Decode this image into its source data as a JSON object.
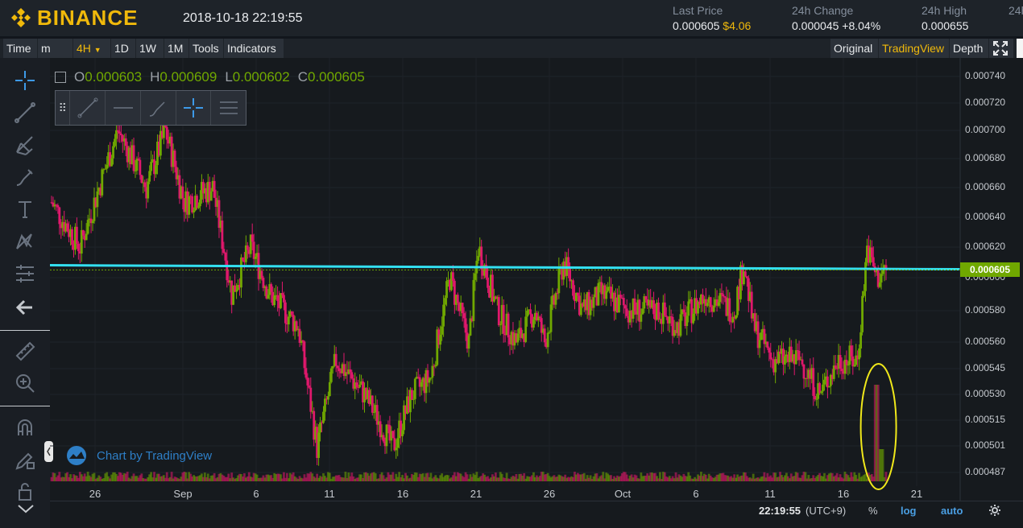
{
  "header": {
    "brand": "BINANCE",
    "datetime": "2018-10-18 22:19:55",
    "last_price_label": "Last Price",
    "last_price": "0.000605",
    "last_price_fiat": "$4.06",
    "change_label": "24h Change",
    "change_value": "0.000045",
    "change_pct": "+8.04%",
    "high_label": "24h High",
    "high_value": "0.000655",
    "more_label": "24h"
  },
  "toolbar": {
    "time": "Time",
    "minutes": "m",
    "interval": "4H",
    "d1": "1D",
    "w1": "1W",
    "m1": "1M",
    "tools": "Tools",
    "indicators": "Indicators",
    "original": "Original",
    "tradingview": "TradingView",
    "depth": "Depth"
  },
  "ohlc": {
    "o_label": "O",
    "o": "0.000603",
    "h_label": "H",
    "h": "0.000609",
    "l_label": "L",
    "l": "0.000602",
    "c_label": "C",
    "c": "0.000605"
  },
  "watermark": "Chart by TradingView",
  "bottom": {
    "time": "22:19:55",
    "tz": "(UTC+9)",
    "pct": "%",
    "log": "log",
    "auto": "auto"
  },
  "colors": {
    "up": "#70a800",
    "down": "#e0186c",
    "hline": "#33e0f0",
    "annotation": "#f0e81a",
    "accent": "#f0b90b"
  },
  "chart_data": {
    "type": "candlestick",
    "price_axis": [
      "0.000740",
      "0.000720",
      "0.000700",
      "0.000680",
      "0.000660",
      "0.000640",
      "0.000620",
      "0.000600",
      "0.000580",
      "0.000560",
      "0.000545",
      "0.000530",
      "0.000515",
      "0.000501",
      "0.000487"
    ],
    "log_scale": true,
    "current_price": "0.000605",
    "horizontal_line": 0.000607,
    "time_axis": [
      "26",
      "Sep",
      "6",
      "11",
      "16",
      "21",
      "26",
      "Oct",
      "6",
      "11",
      "16",
      "21"
    ],
    "trend": [
      [
        0,
        0.00065
      ],
      [
        3,
        0.00062
      ],
      [
        4,
        0.00064
      ],
      [
        7,
        0.0007
      ],
      [
        10,
        0.00066
      ],
      [
        12,
        0.0007
      ],
      [
        14,
        0.00065
      ],
      [
        17,
        0.00066
      ],
      [
        19,
        0.00059
      ],
      [
        21,
        0.00062
      ],
      [
        23,
        0.00059
      ],
      [
        26,
        0.00057
      ],
      [
        28,
        0.0005
      ],
      [
        30,
        0.00055
      ],
      [
        33,
        0.00053
      ],
      [
        36,
        0.0005
      ],
      [
        38,
        0.00053
      ],
      [
        40,
        0.00054
      ],
      [
        42,
        0.0006
      ],
      [
        44,
        0.00056
      ],
      [
        45,
        0.00062
      ],
      [
        47,
        0.00058
      ],
      [
        49,
        0.00056
      ],
      [
        51,
        0.00058
      ],
      [
        52,
        0.00056
      ],
      [
        54,
        0.00061
      ],
      [
        56,
        0.00058
      ],
      [
        58,
        0.00059
      ],
      [
        61,
        0.00058
      ],
      [
        64,
        0.00058
      ],
      [
        66,
        0.00057
      ],
      [
        69,
        0.00059
      ],
      [
        72,
        0.00058
      ],
      [
        73,
        0.00061
      ],
      [
        74,
        0.00057
      ],
      [
        76,
        0.00055
      ],
      [
        79,
        0.00055
      ],
      [
        81,
        0.00053
      ],
      [
        83,
        0.00055
      ],
      [
        85,
        0.00055
      ],
      [
        86,
        0.00062
      ],
      [
        87,
        0.0006
      ],
      [
        88,
        0.000605
      ]
    ],
    "volume_spike_day": "18",
    "annotation": "yellow ellipse around volume spike"
  }
}
